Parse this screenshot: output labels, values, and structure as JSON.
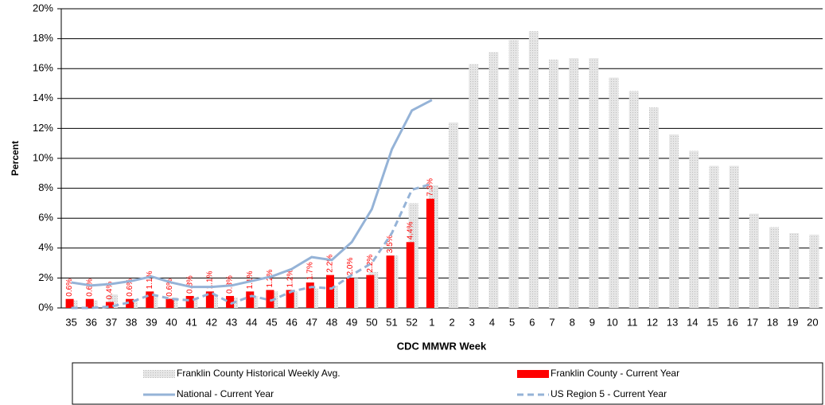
{
  "chart_data": {
    "type": "bar",
    "y_label": "Percent",
    "x_label": "CDC MMWR Week",
    "categories": [
      "35",
      "36",
      "37",
      "38",
      "39",
      "40",
      "41",
      "42",
      "43",
      "44",
      "45",
      "46",
      "47",
      "48",
      "49",
      "50",
      "51",
      "52",
      "1",
      "2",
      "3",
      "4",
      "5",
      "6",
      "7",
      "8",
      "9",
      "10",
      "11",
      "12",
      "13",
      "14",
      "15",
      "16",
      "17",
      "18",
      "19",
      "20"
    ],
    "series": [
      {
        "name": "Franklin County Historical Weekly Avg.",
        "type": "bar",
        "color": "#d9d9d9",
        "values": [
          0.5,
          0.5,
          0.9,
          0.5,
          0.8,
          0.7,
          0.6,
          0.9,
          0.7,
          0.8,
          1.1,
          1.1,
          1.3,
          1.5,
          2.0,
          2.4,
          3.5,
          7.0,
          8.2,
          12.4,
          16.3,
          17.1,
          17.9,
          18.5,
          16.6,
          16.7,
          16.7,
          15.4,
          14.5,
          13.4,
          11.6,
          10.5,
          9.5,
          9.5,
          6.3,
          5.4,
          5.0,
          4.9
        ]
      },
      {
        "name": "Franklin County - Current Year",
        "type": "bar",
        "color": "#ff0000",
        "values": [
          0.6,
          0.6,
          0.4,
          0.6,
          1.1,
          0.6,
          0.8,
          1.1,
          0.8,
          1.1,
          1.2,
          1.2,
          1.7,
          2.2,
          2.0,
          2.2,
          3.5,
          4.4,
          7.3,
          null,
          null,
          null,
          null,
          null,
          null,
          null,
          null,
          null,
          null,
          null,
          null,
          null,
          null,
          null,
          null,
          null,
          null,
          null
        ],
        "value_labels": [
          "0.6%",
          "0.6%",
          "0.4%",
          "0.6%",
          "1.1%",
          "0.6%",
          "0.8%",
          "1.1%",
          "0.8%",
          "1.1%",
          "1.2%",
          "1.2%",
          "1.7%",
          "2.2%",
          "2.0%",
          "2.2%",
          "3.5%",
          "4.4%",
          "7.3%",
          null,
          null,
          null,
          null,
          null,
          null,
          null,
          null,
          null,
          null,
          null,
          null,
          null,
          null,
          null,
          null,
          null,
          null,
          null
        ]
      },
      {
        "name": "National - Current Year",
        "type": "line",
        "color": "#95b3d7",
        "dashed": false,
        "values": [
          1.7,
          1.5,
          1.6,
          1.8,
          2.1,
          1.7,
          1.4,
          1.4,
          1.5,
          1.8,
          2.1,
          2.6,
          3.4,
          3.2,
          4.4,
          6.6,
          10.6,
          13.2,
          13.9,
          null,
          null,
          null,
          null,
          null,
          null,
          null,
          null,
          null,
          null,
          null,
          null,
          null,
          null,
          null,
          null,
          null,
          null,
          null
        ]
      },
      {
        "name": "US Region 5 - Current Year",
        "type": "line",
        "color": "#95b3d7",
        "dashed": true,
        "values": [
          0.0,
          0.0,
          0.1,
          0.4,
          0.9,
          0.6,
          0.5,
          1.0,
          0.3,
          0.8,
          0.5,
          1.1,
          1.4,
          1.3,
          2.2,
          3.0,
          5.0,
          7.9,
          8.3,
          null,
          null,
          null,
          null,
          null,
          null,
          null,
          null,
          null,
          null,
          null,
          null,
          null,
          null,
          null,
          null,
          null,
          null,
          null
        ]
      }
    ],
    "ylim": [
      0,
      20
    ],
    "yticks": [
      {
        "value": 0,
        "label": "0%"
      },
      {
        "value": 2,
        "label": "2%"
      },
      {
        "value": 4,
        "label": "4%"
      },
      {
        "value": 6,
        "label": "6%"
      },
      {
        "value": 8,
        "label": "8%"
      },
      {
        "value": 10,
        "label": "10%"
      },
      {
        "value": 12,
        "label": "12%"
      },
      {
        "value": 14,
        "label": "14%"
      },
      {
        "value": 16,
        "label": "16%"
      },
      {
        "value": 18,
        "label": "18%"
      },
      {
        "value": 20,
        "label": "20%"
      }
    ],
    "grid": true,
    "legend": "bottom"
  }
}
